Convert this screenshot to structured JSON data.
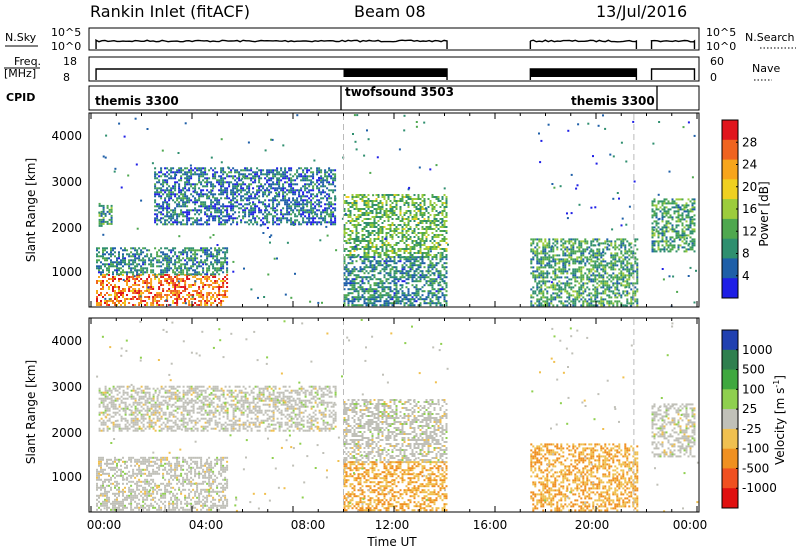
{
  "header": {
    "title": "Rankin Inlet (fitACF)",
    "beam": "Beam 08",
    "date": "13/Jul/2016"
  },
  "strips": {
    "nsky": {
      "label": "N.Sky",
      "ticks": [
        "10^5",
        "10^0"
      ]
    },
    "nsearch": {
      "label": "N.Search",
      "ticks": [
        "10^5",
        "10^0"
      ]
    },
    "freq": {
      "label_line1": "Freq.",
      "label_line2": "[MHz]",
      "ticks": [
        "18",
        "8"
      ]
    },
    "nave": {
      "label": "Nave",
      "ticks": [
        "60",
        "0"
      ]
    },
    "cpid": {
      "label": "CPID",
      "modes": [
        {
          "name": "themis 3300",
          "start_hour": 0
        },
        {
          "name": "twofsound 3503",
          "start_hour": 10
        },
        {
          "name": "themis 3300",
          "start_hour": 21.5
        }
      ]
    }
  },
  "power_panel": {
    "ylabel": "Slant Range [km]",
    "yticks": [
      "4000",
      "3000",
      "2000",
      "1000"
    ],
    "colorbar_label": "Power [dB]",
    "colorbar_ticks": [
      "28",
      "24",
      "20",
      "16",
      "12",
      "8",
      "4"
    ],
    "colors": [
      "#1f1fe6",
      "#1e5fa8",
      "#2f8f6f",
      "#4fa84f",
      "#9ccc3c",
      "#f0d020",
      "#f7a51c",
      "#f06420",
      "#e0141c"
    ]
  },
  "velocity_panel": {
    "ylabel": "Slant Range [km]",
    "yticks": [
      "4000",
      "3000",
      "2000",
      "1000"
    ],
    "colorbar_label": "Velocity [m s",
    "colorbar_exponent": "-1",
    "colorbar_label_end": "]",
    "colorbar_ticks": [
      "1000",
      "500",
      "100",
      "25",
      "-25",
      "-100",
      "-500",
      "-1000"
    ],
    "colors": [
      "#2040b0",
      "#2f7f4f",
      "#3fa83f",
      "#8fd04f",
      "#c0c0b8",
      "#f0c050",
      "#f09020",
      "#f05020",
      "#e01010"
    ]
  },
  "xaxis": {
    "label": "Time UT",
    "ticks": [
      "00:00",
      "04:00",
      "08:00",
      "12:00",
      "16:00",
      "20:00",
      "00:00"
    ]
  },
  "chart_data": {
    "type": "heatmap",
    "x_range_hours": [
      0,
      24
    ],
    "y_range_km": [
      180,
      4500
    ],
    "data_gaps_hours": [
      [
        14.1,
        17.4
      ],
      [
        21.6,
        22.2
      ]
    ],
    "power_regions": [
      {
        "t0": 0.2,
        "t1": 5.4,
        "r0": 200,
        "r1": 900,
        "power_db": 26
      },
      {
        "t0": 0.2,
        "t1": 5.4,
        "r0": 900,
        "r1": 1500,
        "power_db": 10
      },
      {
        "t0": 0.3,
        "t1": 0.8,
        "r0": 2000,
        "r1": 2500,
        "power_db": 12
      },
      {
        "t0": 2.5,
        "t1": 9.7,
        "r0": 2000,
        "r1": 3300,
        "power_db": 8
      },
      {
        "t0": 10.0,
        "t1": 14.1,
        "r0": 1300,
        "r1": 2700,
        "power_db": 14
      },
      {
        "t0": 10.0,
        "t1": 14.1,
        "r0": 200,
        "r1": 1300,
        "power_db": 10
      },
      {
        "t0": 17.4,
        "t1": 21.6,
        "r0": 200,
        "r1": 1700,
        "power_db": 12
      },
      {
        "t0": 22.2,
        "t1": 23.9,
        "r0": 1400,
        "r1": 2600,
        "power_db": 12
      }
    ],
    "velocity_regions": [
      {
        "t0": 0.2,
        "t1": 5.4,
        "r0": 200,
        "r1": 1400,
        "velocity": 0
      },
      {
        "t0": 0.3,
        "t1": 9.7,
        "r0": 2000,
        "r1": 3000,
        "velocity": 0
      },
      {
        "t0": 10.0,
        "t1": 14.1,
        "r0": 1300,
        "r1": 2700,
        "velocity": 0
      },
      {
        "t0": 10.0,
        "t1": 14.1,
        "r0": 200,
        "r1": 1300,
        "velocity": -100
      },
      {
        "t0": 17.4,
        "t1": 21.6,
        "r0": 200,
        "r1": 1700,
        "velocity": -100
      },
      {
        "t0": 22.2,
        "t1": 23.9,
        "r0": 1400,
        "r1": 2600,
        "velocity": 0
      }
    ]
  }
}
